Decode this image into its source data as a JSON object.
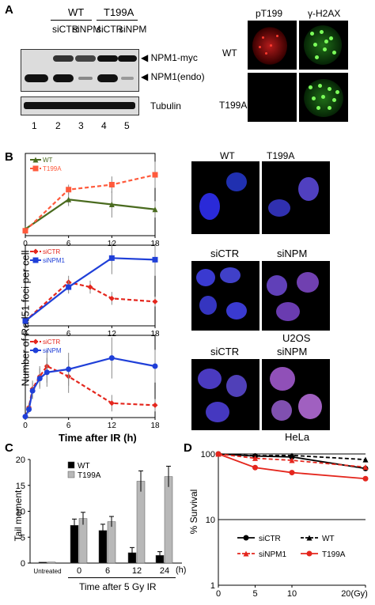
{
  "panelA": {
    "label": "A",
    "groups": [
      "WT",
      "T199A"
    ],
    "lanes_top": [
      "siCTR",
      "siNPM",
      "siCTR",
      "siNPM"
    ],
    "arrows": [
      "NPM1-myc",
      "NPM1(endo)"
    ],
    "loading_label": "Tubulin",
    "lane_numbers": [
      "1",
      "2",
      "3",
      "4",
      "5"
    ],
    "micro_headers": [
      "pT199",
      "γ-H2AX"
    ],
    "micro_rows": [
      "WT",
      "T199A"
    ]
  },
  "panelB": {
    "label": "B",
    "ylabel": "Number of Rad51 foci per cell",
    "xlabel": "Time after IR (h)",
    "image_labels": {
      "row1": [
        "WT",
        "T199A"
      ],
      "row2": [
        "siCTR",
        "siNPM"
      ],
      "row2_cell": "U2OS",
      "row3": [
        "siCTR",
        "siNPM"
      ],
      "row3_cell": "HeLa"
    }
  },
  "panelC": {
    "label": "C",
    "ylabel": "Tail moment",
    "xlabel": "Time after 5 Gy IR",
    "unit": "(h)"
  },
  "panelD": {
    "label": "D",
    "ylabel": "% Survival",
    "unit": "20(Gy)"
  },
  "colors": {
    "wt_green": "#4a6b1f",
    "t199a_orange": "#ff5a3c",
    "sictr_red": "#e4261d",
    "sinpm_blue": "#1f3fd8",
    "bar_black": "#000000",
    "bar_grey": "#b8b8b8"
  },
  "chart_data": [
    {
      "type": "line",
      "x": [
        0,
        6,
        12,
        18
      ],
      "xticks": [
        "0",
        "6",
        "12",
        "18"
      ],
      "ylim": [
        0,
        25
      ],
      "series": [
        {
          "name": "WT",
          "values": [
            2,
            11,
            9.5,
            8
          ],
          "err": [
            0.5,
            2,
            4,
            2.5
          ],
          "color": "#4a6b1f",
          "marker": "triangle",
          "dash": false
        },
        {
          "name": "T199A",
          "values": [
            1.5,
            14,
            15.5,
            18.5
          ],
          "err": [
            0.5,
            1.5,
            2.5,
            4
          ],
          "color": "#ff5a3c",
          "marker": "square",
          "dash": true
        }
      ]
    },
    {
      "type": "line",
      "x": [
        0,
        6,
        9,
        12,
        18
      ],
      "xticks": [
        "0",
        "6",
        "12",
        "18"
      ],
      "ylim": [
        0,
        25
      ],
      "series": [
        {
          "name": "siCTR",
          "x": [
            0,
            6,
            9,
            12,
            18
          ],
          "values": [
            1.5,
            13.5,
            12,
            8.5,
            7.5
          ],
          "err": [
            0.5,
            2,
            2,
            2,
            1.5
          ],
          "color": "#e4261d",
          "marker": "diamond",
          "dash": true
        },
        {
          "name": "siNPM1",
          "x": [
            0,
            6,
            12,
            18
          ],
          "values": [
            1.5,
            12,
            21,
            20.5
          ],
          "err": [
            0.5,
            2,
            5,
            5
          ],
          "color": "#1f3fd8",
          "marker": "square",
          "dash": false
        }
      ]
    },
    {
      "type": "line",
      "x": [
        0,
        0.5,
        1,
        2,
        3,
        6,
        12,
        18
      ],
      "xticks": [
        "0",
        "6",
        "12",
        "18"
      ],
      "ylim": [
        0,
        40
      ],
      "series": [
        {
          "name": "siCTR",
          "values": [
            0.5,
            5,
            14,
            20,
            25,
            20,
            7,
            6
          ],
          "err": [
            0.5,
            2,
            4,
            5,
            8,
            8,
            4,
            3
          ],
          "color": "#e4261d",
          "marker": "diamond",
          "dash": true
        },
        {
          "name": "siNPM",
          "values": [
            0.5,
            4,
            13,
            19,
            22,
            23.5,
            29,
            25
          ],
          "err": [
            0.5,
            2,
            4,
            5,
            7,
            8,
            10,
            8
          ],
          "color": "#1f3fd8",
          "marker": "circle",
          "dash": false
        }
      ]
    },
    {
      "type": "bar",
      "categories": [
        "Untreated",
        "0",
        "6",
        "12",
        "24"
      ],
      "ylim": [
        0,
        20
      ],
      "yticks": [
        "0",
        "5",
        "10",
        "15",
        "20"
      ],
      "series": [
        {
          "name": "WT",
          "values": [
            0.2,
            7.3,
            6.3,
            2,
            1.5
          ],
          "err": [
            0,
            1.2,
            1.2,
            1,
            0.7
          ],
          "color": "#000000"
        },
        {
          "name": "T199A",
          "values": [
            0.2,
            8.6,
            8,
            15.8,
            16.7
          ],
          "err": [
            0,
            1.2,
            1,
            2,
            2
          ],
          "color": "#b8b8b8"
        }
      ]
    },
    {
      "type": "line",
      "x": [
        0,
        5,
        10,
        20
      ],
      "xticks": [
        "0",
        "5",
        "10",
        "20(Gy)"
      ],
      "ylim": [
        1,
        100
      ],
      "log_y": true,
      "yticks": [
        "1",
        "10",
        "100"
      ],
      "series": [
        {
          "name": "siCTR",
          "values": [
            100,
            93,
            90,
            60
          ],
          "color": "#000000",
          "marker": "circle",
          "dash": false
        },
        {
          "name": "WT",
          "values": [
            100,
            94,
            95,
            82
          ],
          "color": "#000000",
          "marker": "triangle",
          "dash": true
        },
        {
          "name": "siNPM1",
          "values": [
            100,
            86,
            80,
            63
          ],
          "color": "#e4261d",
          "marker": "triangle",
          "dash": true
        },
        {
          "name": "T199A",
          "values": [
            100,
            62,
            52,
            42
          ],
          "color": "#e4261d",
          "marker": "circle",
          "dash": false
        }
      ]
    }
  ]
}
